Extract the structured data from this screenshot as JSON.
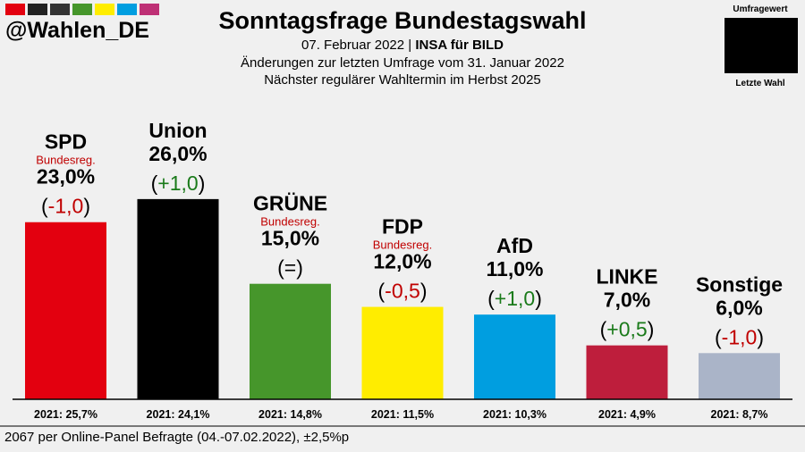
{
  "header": {
    "handle": "@Wahlen_DE",
    "title": "Sonntagsfrage Bundestagswahl",
    "date": "07. Februar 2022",
    "source": "INSA für BILD",
    "line2": "Änderungen zur letzten Umfrage vom 31. Januar 2022",
    "line3": "Nächster regulärer Wahltermin im Herbst 2025",
    "strip_colors": [
      "#e3000f",
      "#222222",
      "#333333",
      "#46962b",
      "#ffed00",
      "#009ee0",
      "#be3075"
    ]
  },
  "legend": {
    "top_label": "Umfragewert",
    "bottom_label": "Letzte Wahl"
  },
  "footer": {
    "text": "2067 per Online-Panel Befragte (04.-07.02.2022), ±2,5%p"
  },
  "chart_data": {
    "type": "bar",
    "categories": [
      "SPD",
      "Union",
      "GRÜNE",
      "FDP",
      "AfD",
      "LINKE",
      "Sonstige"
    ],
    "values": [
      23.0,
      26.0,
      15.0,
      12.0,
      11.0,
      7.0,
      6.0
    ],
    "value_labels": [
      "23,0%",
      "26,0%",
      "15,0%",
      "12,0%",
      "11,0%",
      "7,0%",
      "6,0%"
    ],
    "change_labels": [
      "-1,0",
      "+1,0",
      "=",
      "-0,5",
      "+1,0",
      "+0,5",
      "-1,0"
    ],
    "change_colors": [
      "#c00000",
      "#1a7a1a",
      "#000000",
      "#c00000",
      "#1a7a1a",
      "#1a7a1a",
      "#c00000"
    ],
    "notes": [
      "Bundesreg.",
      "",
      "Bundesreg.",
      "Bundesreg.",
      "",
      "",
      ""
    ],
    "note_color": "#c00000",
    "colors": [
      "#e3000f",
      "#000000",
      "#46962b",
      "#ffed00",
      "#009ee0",
      "#be1e3c",
      "#aab4c8"
    ],
    "previous_election": [
      "2021: 25,7%",
      "2021: 24,1%",
      "2021: 14,8%",
      "2021: 11,5%",
      "2021: 10,3%",
      "2021: 4,9%",
      "2021: 8,7%"
    ],
    "ylim": [
      0,
      26
    ]
  }
}
